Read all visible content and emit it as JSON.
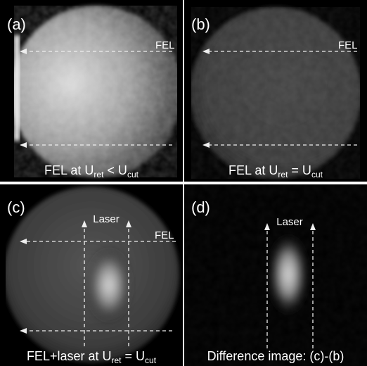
{
  "panels": [
    {
      "label": "(a)",
      "annotations": [
        "FEL"
      ],
      "caption": [
        "FEL at U",
        "ret",
        " < U",
        "cut"
      ]
    },
    {
      "label": "(b)",
      "annotations": [
        "FEL"
      ],
      "caption": [
        "FEL at U",
        "ret",
        " = U",
        "cut"
      ]
    },
    {
      "label": "(c)",
      "annotations": [
        "Laser",
        "FEL"
      ],
      "caption": [
        "FEL+laser at U",
        "ret",
        " = U",
        "cut"
      ]
    },
    {
      "label": "(d)",
      "annotations": [
        "Laser"
      ],
      "caption": [
        "Difference image: (c)-(b)"
      ]
    }
  ]
}
